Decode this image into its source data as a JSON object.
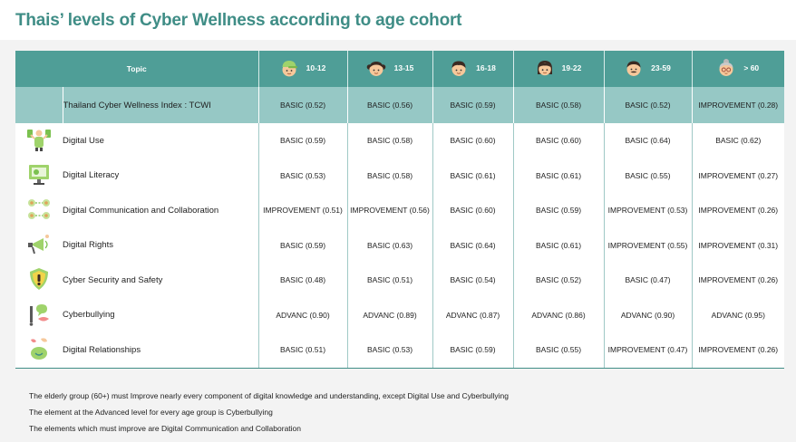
{
  "title": "Thais’ levels of Cyber Wellness according to age cohort",
  "header": {
    "topic_label": "Topic",
    "age_groups": [
      "10-12",
      "13-15",
      "16-18",
      "19-22",
      "23-59",
      "> 60"
    ]
  },
  "index_row": {
    "topic": "Thailand Cyber Wellness Index : TCWI",
    "values": [
      "BASIC (0.52)",
      "BASIC (0.56)",
      "BASIC (0.59)",
      "BASIC (0.58)",
      "BASIC (0.52)",
      "IMPROVEMENT (0.28)"
    ]
  },
  "rows": [
    {
      "topic": "Digital Use",
      "icon": "digital-use-icon",
      "values": [
        "BASIC (0.59)",
        "BASIC (0.58)",
        "BASIC (0.60)",
        "BASIC (0.60)",
        "BASIC (0.64)",
        "BASIC (0.62)"
      ]
    },
    {
      "topic": "Digital Literacy",
      "icon": "digital-literacy-icon",
      "values": [
        "BASIC (0.53)",
        "BASIC (0.58)",
        "BASIC (0.61)",
        "BASIC (0.61)",
        "BASIC (0.55)",
        "IMPROVEMENT (0.27)"
      ]
    },
    {
      "topic": "Digital Communication and Collaboration",
      "icon": "collaboration-icon",
      "values": [
        "IMPROVEMENT (0.51)",
        "IMPROVEMENT (0.56)",
        "BASIC (0.60)",
        "BASIC (0.59)",
        "IMPROVEMENT (0.53)",
        "IMPROVEMENT (0.26)"
      ]
    },
    {
      "topic": "Digital Rights",
      "icon": "megaphone-icon",
      "values": [
        "BASIC (0.59)",
        "BASIC (0.63)",
        "BASIC (0.64)",
        "BASIC (0.61)",
        "IMPROVEMENT (0.55)",
        "IMPROVEMENT (0.31)"
      ]
    },
    {
      "topic": "Cyber Security and Safety",
      "icon": "security-shield-icon",
      "values": [
        "BASIC (0.48)",
        "BASIC (0.51)",
        "BASIC (0.54)",
        "BASIC (0.52)",
        "BASIC (0.47)",
        "IMPROVEMENT (0.26)"
      ]
    },
    {
      "topic": "Cyberbullying",
      "icon": "cyberbullying-icon",
      "values": [
        "ADVANC (0.90)",
        "ADVANC (0.89)",
        "ADVANC (0.87)",
        "ADVANC (0.86)",
        "ADVANC (0.90)",
        "ADVANC (0.95)"
      ]
    },
    {
      "topic": "Digital Relationships",
      "icon": "relationships-icon",
      "values": [
        "BASIC (0.51)",
        "BASIC (0.53)",
        "BASIC (0.59)",
        "BASIC (0.55)",
        "IMPROVEMENT (0.47)",
        "IMPROVEMENT (0.26)"
      ]
    }
  ],
  "notes": [
    "The elderly group (60+) must Improve nearly every component of digital knowledge and understanding, except Digital Use and Cyberbullying",
    "The element at the Advanced level for every age group is Cyberbullying",
    "The elements which must improve are Digital Communication and Collaboration"
  ],
  "colors": {
    "title": "#3f8d86",
    "header_bg": "#4f9e97",
    "index_row_bg": "#96c8c5",
    "panel_bg": "#f3f3f3"
  }
}
